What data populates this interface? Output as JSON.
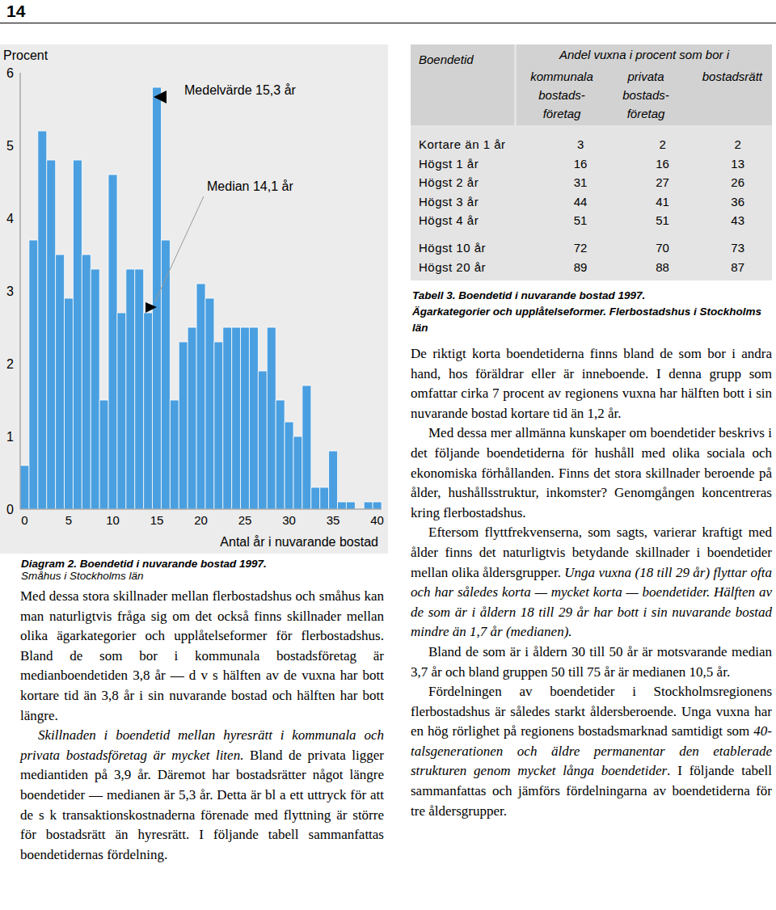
{
  "page_number": "14",
  "chart_data": {
    "type": "bar",
    "title": "Diagram 2. Boendetid i nuvarande bostad 1997.",
    "subtitle": "Småhus i Stockholms län",
    "y_label": "Procent",
    "x_label": "Antal år i nuvarande bostad",
    "categories": [
      "0",
      null,
      null,
      null,
      null,
      "5",
      null,
      null,
      null,
      null,
      "10",
      null,
      null,
      null,
      null,
      "15",
      null,
      null,
      null,
      null,
      "20",
      null,
      null,
      null,
      null,
      "25",
      null,
      null,
      null,
      null,
      "30",
      null,
      null,
      null,
      null,
      "35",
      null,
      null,
      null,
      null,
      "40"
    ],
    "values": [
      0.6,
      3.7,
      5.2,
      4.8,
      3.5,
      2.9,
      4.8,
      3.5,
      3.3,
      1.5,
      4.6,
      2.7,
      3.3,
      3.3,
      2.7,
      5.8,
      3.7,
      1.5,
      2.3,
      2.5,
      3.1,
      2.9,
      2.3,
      2.5,
      2.5,
      2.5,
      2.5,
      1.9,
      2.5,
      1.5,
      1.2,
      1.0,
      1.7,
      0.3,
      0.3,
      0.8,
      0.1,
      0.1,
      0,
      0.1,
      0.1
    ],
    "color": "#4a9fe0",
    "ylim": [
      0,
      6
    ],
    "yticks": [
      0,
      1,
      2,
      3,
      4,
      5,
      6
    ],
    "annotations": [
      {
        "text": "Medelvärde 15,3 år"
      },
      {
        "text": "Median 14,1 år"
      }
    ]
  },
  "table": {
    "header": "Boendetid",
    "group_header": "Andel vuxna i procent som bor i",
    "columns": [
      [
        "kommunala",
        "bostads-",
        "företag"
      ],
      [
        "privata",
        "bostads-",
        "företag"
      ],
      [
        "bostadsrätt"
      ]
    ],
    "row_groups": [
      [
        {
          "label": "Kortare än 1 år",
          "values": [
            3,
            2,
            2
          ]
        },
        {
          "label": "Högst 1 år",
          "values": [
            16,
            16,
            13
          ]
        },
        {
          "label": "Högst 2 år",
          "values": [
            31,
            27,
            26
          ]
        },
        {
          "label": "Högst 3 år",
          "values": [
            44,
            41,
            36
          ]
        },
        {
          "label": "Högst 4 år",
          "values": [
            51,
            51,
            43
          ]
        }
      ],
      [
        {
          "label": "Högst 10 år",
          "values": [
            72,
            70,
            73
          ]
        },
        {
          "label": "Högst 20 år",
          "values": [
            89,
            88,
            87
          ]
        }
      ]
    ],
    "caption": [
      "Tabell 3. Boendetid i nuvarande bostad 1997.",
      "Ägarkategorier och upplåtelseformer. Flerbostadshus i Stockholms län"
    ]
  },
  "text": {
    "left_column": [
      [
        {
          "text": "Med dessa stora skillnader mellan flerbostadshus och småhus kan man naturligtvis fråga sig om det också finns skillnader mellan olika ägarkategorier och upplåtelseformer för flerbostadshus. Bland de som bor i kommunala bostadsföretag är medianboendetiden 3,8 år — d v s hälften av de vuxna har bott kortare tid än 3,8 år i sin nuvarande bostad och hälften har bott längre."
        }
      ],
      [
        {
          "text": "Skillnaden i boendetid mellan hyresrätt i kommunala och privata bostadsföretag är mycket liten.",
          "italic": true
        },
        {
          "text": " Bland de privata ligger mediantiden på 3,9 år. Däremot har bostadsrätter något längre boendetider — medianen är 5,3 år. Detta är bl a ett uttryck för att de s k transaktionskostnaderna förenade med flyttning är större för bostadsrätt än hyresrätt. I följande tabell sammanfattas boendetidernas fördelning."
        }
      ]
    ],
    "right_column": [
      [
        {
          "text": "De riktigt korta boendetiderna finns bland de som bor i andra hand, hos föräldrar eller är inneboende. I denna grupp som omfattar cirka 7 procent av regionens vuxna har hälften bott i sin nuvarande bostad kortare tid än 1,2 år."
        }
      ],
      [
        {
          "text": "Med dessa mer allmänna kunskaper om boendetider beskrivs i det följande boendetiderna för hushåll med olika sociala och ekonomiska förhållanden. Finns det stora skillnader beroende på ålder, hushållsstruktur, inkomster? Genomgången koncentreras kring flerbostadshus."
        }
      ],
      [
        {
          "text": "Eftersom flyttfrekvenserna, som sagts, varierar kraftigt med ålder finns det naturligtvis betydande skillnader i boendetider mellan olika åldersgrupper. "
        },
        {
          "text": "Unga vuxna (18 till 29 år) flyttar ofta och har således korta — mycket korta — boendetider. Hälften av de som är i åldern 18 till 29 år har bott i sin nuvarande bostad mindre än 1,7 år (medianen).",
          "italic": true
        }
      ],
      [
        {
          "text": "Bland de som är i åldern 30 till 50 år är motsvarande median 3,7 år och bland gruppen 50 till 75 år är medianen 10,5 år."
        }
      ],
      [
        {
          "text": "Fördelningen av boendetider i Stockholmsregionens flerbostadshus är således starkt åldersberoende. Unga vuxna har en hög rörlighet på regionens bostadsmarknad samtidigt som "
        },
        {
          "text": "40-talsgenerationen och äldre permanentar den etablerade strukturen genom mycket långa boendetider",
          "italic": true
        },
        {
          "text": ". I följande tabell sammanfattas och jämförs fördelningarna av boendetiderna för tre åldersgrupper."
        }
      ]
    ]
  }
}
